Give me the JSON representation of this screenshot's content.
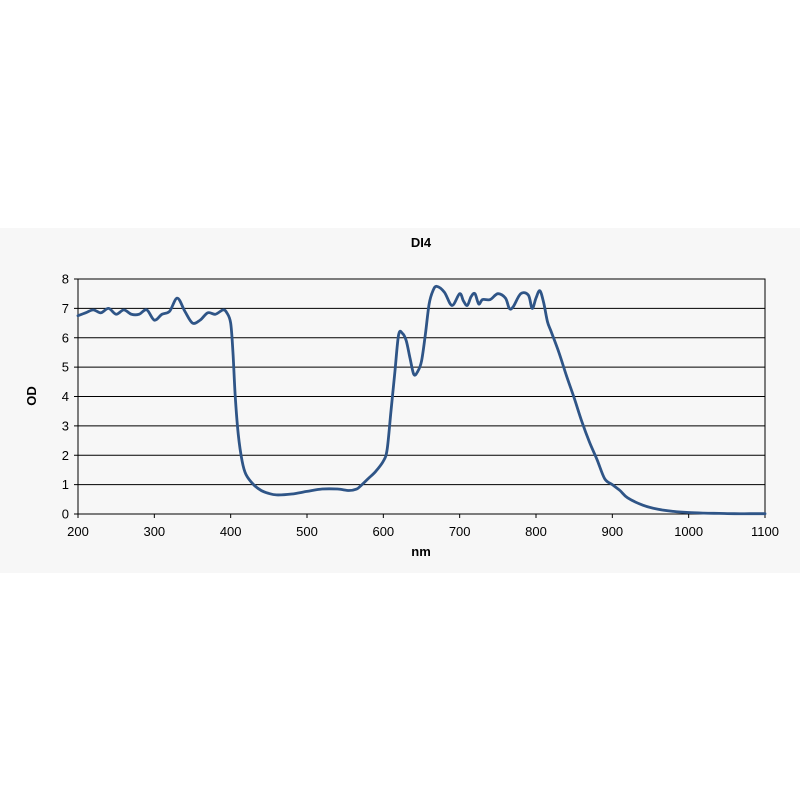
{
  "chart_data": {
    "type": "line",
    "title": "DI4",
    "xlabel": "nm",
    "ylabel": "OD",
    "xlim": [
      200,
      1100
    ],
    "ylim": [
      0,
      8
    ],
    "xticks": [
      200,
      300,
      400,
      500,
      600,
      700,
      800,
      900,
      1000,
      1100
    ],
    "yticks": [
      0,
      1,
      2,
      3,
      4,
      5,
      6,
      7,
      8
    ],
    "grid": "horizontal",
    "legend": "none",
    "line_color": "#2f5587",
    "series": [
      {
        "x": [
          200,
          210,
          220,
          230,
          240,
          250,
          260,
          270,
          280,
          290,
          300,
          310,
          320,
          330,
          340,
          350,
          360,
          370,
          380,
          390,
          395,
          400,
          403,
          406,
          410,
          415,
          420,
          430,
          440,
          450,
          460,
          480,
          500,
          520,
          540,
          555,
          565,
          570,
          580,
          590,
          600,
          605,
          610,
          615,
          620,
          625,
          630,
          635,
          640,
          645,
          650,
          655,
          660,
          665,
          670,
          680,
          690,
          700,
          705,
          710,
          715,
          720,
          725,
          730,
          740,
          750,
          760,
          765,
          770,
          780,
          790,
          795,
          800,
          805,
          810,
          815,
          820,
          830,
          840,
          850,
          860,
          870,
          880,
          890,
          900,
          910,
          920,
          940,
          960,
          980,
          1000,
          1020,
          1040,
          1060,
          1080,
          1100
        ],
        "y": [
          6.75,
          6.85,
          6.95,
          6.85,
          7.0,
          6.8,
          6.95,
          6.8,
          6.8,
          6.95,
          6.6,
          6.8,
          6.9,
          7.35,
          6.9,
          6.5,
          6.6,
          6.85,
          6.8,
          6.95,
          6.85,
          6.5,
          5.5,
          4.0,
          2.7,
          1.8,
          1.35,
          1.0,
          0.8,
          0.7,
          0.65,
          0.68,
          0.77,
          0.85,
          0.85,
          0.8,
          0.85,
          0.95,
          1.2,
          1.45,
          1.8,
          2.2,
          3.5,
          4.8,
          6.1,
          6.15,
          5.9,
          5.3,
          4.75,
          4.85,
          5.2,
          6.1,
          7.15,
          7.6,
          7.75,
          7.55,
          7.1,
          7.5,
          7.25,
          7.1,
          7.4,
          7.5,
          7.15,
          7.3,
          7.3,
          7.5,
          7.35,
          7.0,
          7.05,
          7.5,
          7.45,
          7.0,
          7.35,
          7.6,
          7.2,
          6.55,
          6.2,
          5.5,
          4.7,
          3.95,
          3.15,
          2.45,
          1.85,
          1.2,
          1.0,
          0.8,
          0.55,
          0.3,
          0.16,
          0.09,
          0.05,
          0.03,
          0.02,
          0.01,
          0.01,
          0.01
        ]
      }
    ]
  }
}
